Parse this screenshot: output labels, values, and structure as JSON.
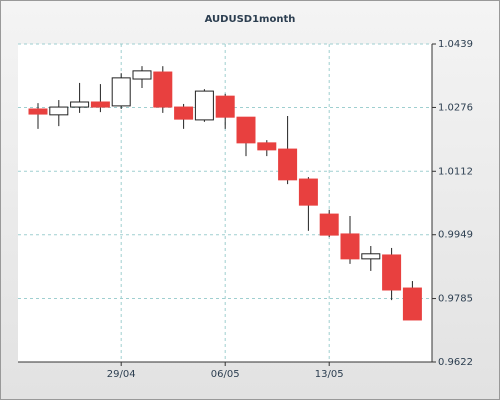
{
  "chart_data": {
    "type": "candlestick",
    "title": "AUDUSD1month",
    "categories": [
      null,
      null,
      null,
      null,
      "29/04",
      null,
      null,
      null,
      null,
      "06/05",
      null,
      null,
      null,
      null,
      "13/05",
      null,
      null,
      null,
      null
    ],
    "open": [
      1.0272,
      1.0257,
      1.0277,
      1.029,
      1.028,
      1.0349,
      1.0367,
      1.0277,
      1.0244,
      1.0305,
      1.0251,
      1.0185,
      1.0169,
      1.0092,
      1.0002,
      0.9951,
      0.9887,
      0.9897,
      0.9812
    ],
    "high": [
      1.0287,
      1.0295,
      1.0339,
      1.0336,
      1.0364,
      1.0382,
      1.0382,
      1.0285,
      1.0323,
      1.0311,
      1.0251,
      1.0192,
      1.0254,
      1.0097,
      1.0013,
      0.9997,
      0.992,
      0.9915,
      0.983
    ],
    "low": [
      1.0221,
      1.0228,
      1.0262,
      1.0264,
      1.0272,
      1.0326,
      1.0262,
      1.0221,
      1.0239,
      1.0221,
      1.0151,
      1.0151,
      1.0079,
      0.9959,
      0.9943,
      0.9874,
      0.9856,
      0.9781,
      0.973
    ],
    "close": [
      1.0259,
      1.0277,
      1.029,
      1.0277,
      1.0352,
      1.037,
      1.0277,
      1.0246,
      1.0318,
      1.0251,
      1.0185,
      1.0167,
      1.009,
      1.0025,
      0.9948,
      0.9887,
      0.99,
      0.9807,
      0.973
    ],
    "up_color": "#ffffff",
    "down_color": "#e8403f",
    "ylim": [
      0.9622,
      1.0439
    ],
    "yticks": [
      0.9622,
      0.9785,
      0.9949,
      1.0112,
      1.0276,
      1.0439
    ],
    "grid": true
  }
}
